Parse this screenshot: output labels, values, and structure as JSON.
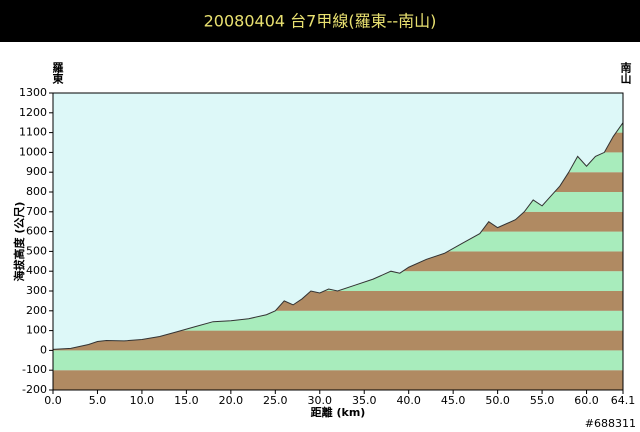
{
  "chart_data": {
    "type": "area",
    "title": "20080404  台7甲線(羅東--南山)",
    "x_label": "距離 (km)",
    "y_label": "海拔高度 (公尺)",
    "start_label": "羅東",
    "end_label": "南山",
    "watermark": "#688311",
    "xlim": [
      0,
      64.1
    ],
    "ylim": [
      -200,
      1300
    ],
    "xticks": [
      {
        "value": 0,
        "label": "0.0"
      },
      {
        "value": 5,
        "label": "5.0"
      },
      {
        "value": 10,
        "label": "10.0"
      },
      {
        "value": 15,
        "label": "15.0"
      },
      {
        "value": 20,
        "label": "20.0"
      },
      {
        "value": 25,
        "label": "25.0"
      },
      {
        "value": 30,
        "label": "30.0"
      },
      {
        "value": 35,
        "label": "35.0"
      },
      {
        "value": 40,
        "label": "40.0"
      },
      {
        "value": 45,
        "label": "45.0"
      },
      {
        "value": 50,
        "label": "50.0"
      },
      {
        "value": 55,
        "label": "55.0"
      },
      {
        "value": 60,
        "label": "60.0"
      },
      64.1
    ],
    "yticks": [
      -200,
      -100,
      0,
      100,
      200,
      300,
      400,
      500,
      600,
      700,
      800,
      900,
      1000,
      1100,
      1200,
      1300
    ],
    "sky_color": "#ddf8f8",
    "band_colors": [
      "#b08a62",
      "#a8ecbc"
    ],
    "line_color": "#333333",
    "x": [
      0,
      2,
      4,
      5,
      6,
      8,
      10,
      12,
      14,
      16,
      18,
      20,
      22,
      24,
      25,
      26,
      27,
      28,
      29,
      30,
      31,
      32,
      34,
      36,
      38,
      39,
      40,
      42,
      44,
      46,
      48,
      49,
      50,
      52,
      53,
      54,
      55,
      56,
      57,
      58,
      59,
      60,
      61,
      62,
      63,
      64.1
    ],
    "values": [
      5,
      10,
      30,
      45,
      50,
      48,
      55,
      70,
      95,
      120,
      145,
      150,
      160,
      180,
      200,
      250,
      230,
      260,
      300,
      290,
      310,
      300,
      330,
      360,
      400,
      390,
      420,
      460,
      490,
      540,
      590,
      650,
      620,
      660,
      700,
      760,
      730,
      780,
      830,
      900,
      980,
      930,
      980,
      1000,
      1080,
      1150
    ]
  }
}
